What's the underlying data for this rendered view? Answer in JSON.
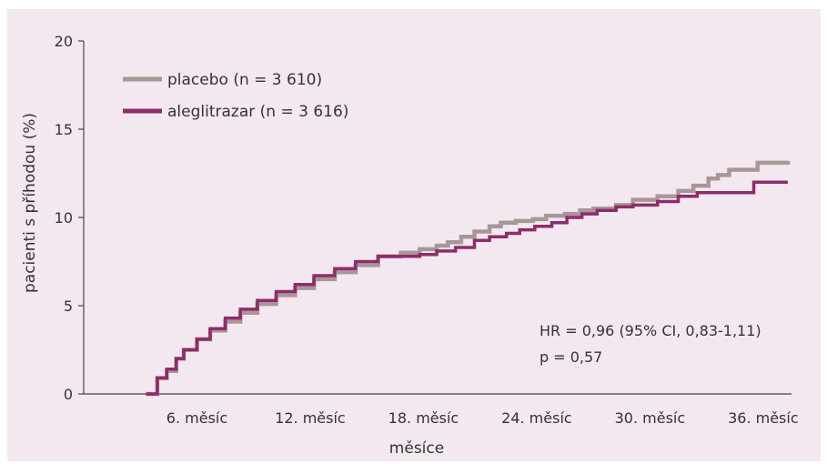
{
  "chart_data": {
    "type": "line",
    "ylabel": "pacienti s příhodou (%)",
    "xlabel": "měsíce",
    "ylim": [
      0,
      20
    ],
    "xlim": [
      0,
      37.5
    ],
    "yticks": [
      0,
      5,
      10,
      15,
      20
    ],
    "xticks": [
      {
        "value": 6,
        "label": "6. měsíc"
      },
      {
        "value": 12,
        "label": "12. měsíc"
      },
      {
        "value": 18,
        "label": "18. měsíc"
      },
      {
        "value": 24,
        "label": "24. měsíc"
      },
      {
        "value": 30,
        "label": "30. měsíc"
      },
      {
        "value": 36,
        "label": "36. měsíc"
      }
    ],
    "grid": false,
    "legend_position": "top-left",
    "series": [
      {
        "name": "placebo (n = 3 610)",
        "color": "#a89797",
        "step": true,
        "x": [
          3.3,
          3.9,
          4.4,
          4.9,
          5.3,
          6.0,
          6.7,
          7.5,
          8.3,
          9.2,
          10.2,
          11.2,
          12.2,
          13.3,
          14.4,
          15.6,
          16.8,
          17.8,
          18.7,
          19.3,
          20.0,
          20.7,
          21.5,
          22.1,
          22.9,
          23.8,
          24.5,
          25.5,
          26.3,
          27.0,
          28.2,
          29.1,
          30.4,
          31.5,
          32.3,
          33.1,
          33.6,
          34.2,
          35.7,
          37.3
        ],
        "y": [
          0,
          0.9,
          1.3,
          2.0,
          2.5,
          3.1,
          3.6,
          4.1,
          4.6,
          5.1,
          5.6,
          6.0,
          6.5,
          6.9,
          7.3,
          7.8,
          8.0,
          8.2,
          8.4,
          8.6,
          8.9,
          9.2,
          9.5,
          9.7,
          9.8,
          9.9,
          10.1,
          10.2,
          10.4,
          10.5,
          10.7,
          11.0,
          11.2,
          11.5,
          11.8,
          12.2,
          12.4,
          12.7,
          13.1,
          13.2
        ]
      },
      {
        "name": "aleglitrazar (n = 3 616)",
        "color": "#8e2c6b",
        "step": true,
        "x": [
          3.3,
          3.9,
          4.4,
          4.9,
          5.3,
          6.0,
          6.7,
          7.5,
          8.3,
          9.2,
          10.2,
          11.2,
          12.2,
          13.3,
          14.4,
          15.6,
          16.8,
          17.8,
          18.7,
          19.7,
          20.7,
          21.5,
          22.4,
          23.1,
          23.9,
          24.8,
          25.6,
          26.4,
          27.2,
          28.2,
          29.1,
          30.4,
          31.5,
          32.5,
          34.1,
          35.5,
          37.3
        ],
        "y": [
          0,
          0.9,
          1.4,
          2.0,
          2.5,
          3.1,
          3.7,
          4.3,
          4.8,
          5.3,
          5.8,
          6.2,
          6.7,
          7.1,
          7.5,
          7.8,
          7.8,
          7.9,
          8.1,
          8.3,
          8.7,
          8.9,
          9.1,
          9.3,
          9.5,
          9.7,
          10.0,
          10.2,
          10.4,
          10.6,
          10.7,
          10.9,
          11.2,
          11.4,
          11.4,
          12.0,
          12.0
        ]
      }
    ],
    "annotations": [
      "HR = 0,96 (95% CI, 0,83-1,11)",
      "p = 0,57"
    ]
  }
}
